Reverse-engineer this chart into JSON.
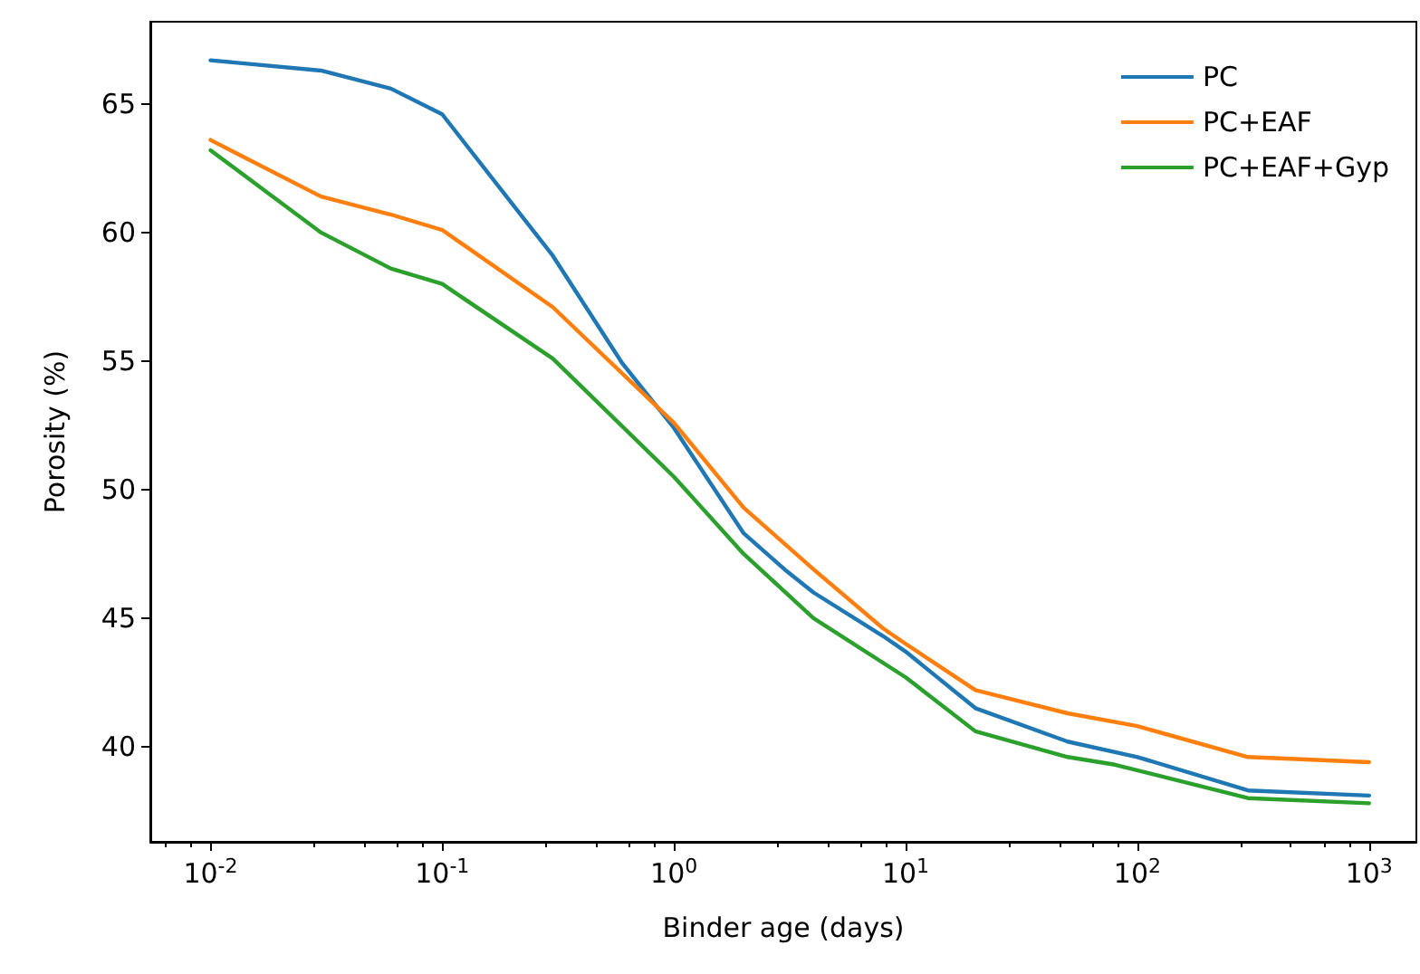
{
  "chart_data": {
    "type": "line",
    "xlabel": "Binder age (days)",
    "ylabel": "Porosity (%)",
    "log": "x",
    "xlim": [
      0.0055,
      1600
    ],
    "ylim": [
      36.3,
      68.2
    ],
    "xticks": [
      {
        "value": 0.01,
        "label": "10$^{-2}$"
      },
      {
        "value": 0.1,
        "label": "10$^{-1}$"
      },
      {
        "value": 1,
        "label": "10$^{0}$"
      },
      {
        "value": 10,
        "label": "10$^{1}$"
      },
      {
        "value": 100,
        "label": "10$^{2}$"
      },
      {
        "value": 1000,
        "label": "10$^{3}$"
      }
    ],
    "yticks": [
      40,
      45,
      50,
      55,
      60,
      65
    ],
    "grid": false,
    "legend": "top right",
    "marker": "none",
    "line_style": "solid",
    "series": [
      {
        "name": "PC",
        "color": "#1f77b4",
        "x": [
          0.01,
          0.03,
          0.06,
          0.1,
          0.3,
          0.6,
          1,
          2,
          3,
          4,
          8,
          10,
          20,
          50,
          100,
          300,
          1000
        ],
        "values": [
          66.7,
          66.3,
          65.6,
          64.6,
          59.1,
          54.9,
          52.4,
          48.3,
          46.9,
          46.0,
          44.3,
          43.7,
          41.5,
          40.2,
          39.6,
          38.3,
          38.1
        ]
      },
      {
        "name": "PC+EAF",
        "color": "#ff7f0e",
        "x": [
          0.01,
          0.03,
          0.06,
          0.1,
          0.3,
          1,
          2,
          4,
          8,
          10,
          20,
          50,
          100,
          300,
          1000
        ],
        "values": [
          63.6,
          61.4,
          60.7,
          60.1,
          57.1,
          52.6,
          49.3,
          46.9,
          44.6,
          44.0,
          42.2,
          41.3,
          40.8,
          39.6,
          39.4
        ]
      },
      {
        "name": "PC+EAF+Gyp",
        "color": "#2ca02c",
        "x": [
          0.01,
          0.03,
          0.06,
          0.1,
          0.3,
          1,
          2,
          4,
          10,
          20,
          50,
          80,
          300,
          1000
        ],
        "values": [
          63.2,
          60.0,
          58.6,
          58.0,
          55.1,
          50.5,
          47.5,
          45.0,
          42.7,
          40.6,
          39.6,
          39.3,
          38.0,
          37.8
        ]
      }
    ]
  }
}
